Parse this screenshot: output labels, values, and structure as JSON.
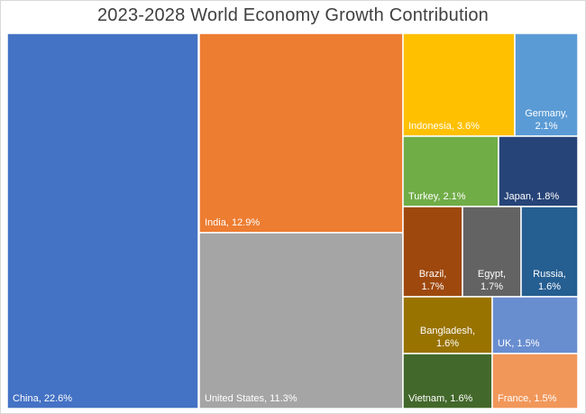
{
  "chart_data": {
    "type": "treemap",
    "title": "2023-2028 World Economy Growth Contribution",
    "unit": "%",
    "items": [
      {
        "name": "China",
        "value": 22.6,
        "color": "#4472c4",
        "label_lines": [
          "China, 22.6%"
        ],
        "label_pos": "bottom-left"
      },
      {
        "name": "India",
        "value": 12.9,
        "color": "#ed7d31",
        "label_lines": [
          "India, 12.9%"
        ],
        "label_pos": "bottom-left"
      },
      {
        "name": "United States",
        "value": 11.3,
        "color": "#a5a5a5",
        "label_lines": [
          "United States, 11.3%"
        ],
        "label_pos": "bottom-left"
      },
      {
        "name": "Indonesia",
        "value": 3.6,
        "color": "#ffc000",
        "label_lines": [
          "Indonesia, 3.6%"
        ],
        "label_pos": "bottom-left"
      },
      {
        "name": "Germany",
        "value": 2.1,
        "color": "#5b9bd5",
        "label_lines": [
          "Germany,",
          "2.1%"
        ],
        "label_pos": "bottom-right"
      },
      {
        "name": "Turkey",
        "value": 2.1,
        "color": "#70ad47",
        "label_lines": [
          "Turkey, 2.1%"
        ],
        "label_pos": "bottom-left"
      },
      {
        "name": "Japan",
        "value": 1.8,
        "color": "#264478",
        "label_lines": [
          "Japan, 1.8%"
        ],
        "label_pos": "bottom-left"
      },
      {
        "name": "Brazil",
        "value": 1.7,
        "color": "#9e480e",
        "label_lines": [
          "Brazil,",
          "1.7%"
        ],
        "label_pos": "bottom-left"
      },
      {
        "name": "Egypt",
        "value": 1.7,
        "color": "#636363",
        "label_lines": [
          "Egypt,",
          "1.7%"
        ],
        "label_pos": "bottom-left"
      },
      {
        "name": "Russia",
        "value": 1.6,
        "color": "#255e91",
        "label_lines": [
          "Russia,",
          "1.6%"
        ],
        "label_pos": "bottom-left"
      },
      {
        "name": "Bangladesh",
        "value": 1.6,
        "color": "#997300",
        "label_lines": [
          "Bangladesh,",
          "1.6%"
        ],
        "label_pos": "bottom-left"
      },
      {
        "name": "UK",
        "value": 1.5,
        "color": "#698ed0",
        "label_lines": [
          "UK, 1.5%"
        ],
        "label_pos": "bottom-left"
      },
      {
        "name": "Vietnam",
        "value": 1.6,
        "color": "#43682b",
        "label_lines": [
          "Vietnam, 1.6%"
        ],
        "label_pos": "bottom-left"
      },
      {
        "name": "France",
        "value": 1.5,
        "color": "#f1975a",
        "label_lines": [
          "France, 1.5%"
        ],
        "label_pos": "bottom-left"
      }
    ]
  }
}
